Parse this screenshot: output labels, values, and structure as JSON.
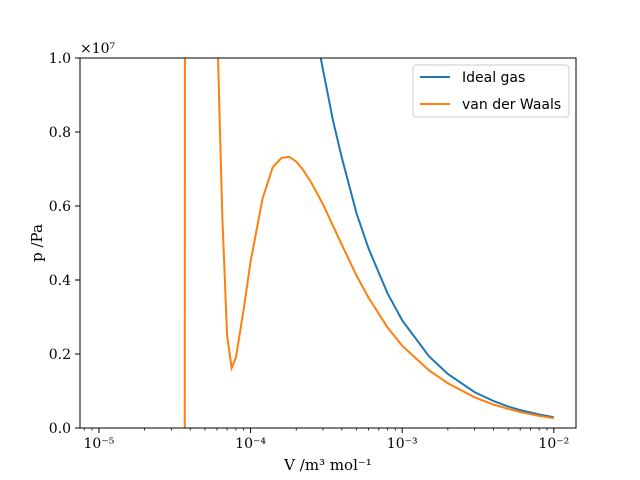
{
  "chart_data": {
    "type": "line",
    "xscale": "log",
    "xlim": [
      7.5e-06,
      0.014
    ],
    "ylim": [
      0,
      1.0
    ],
    "y_multiplier_label": "×10⁷",
    "xlabel": "V /m³ mol⁻¹",
    "ylabel": "p /Pa",
    "grid": false,
    "legend_position": "top-right",
    "x_ticks": [
      {
        "value": 1e-05,
        "label": "10⁻⁵"
      },
      {
        "value": 0.0001,
        "label": "10⁻⁴"
      },
      {
        "value": 0.001,
        "label": "10⁻³"
      },
      {
        "value": 0.01,
        "label": "10⁻²"
      }
    ],
    "y_ticks": [
      {
        "value": 0.0,
        "label": "0.0"
      },
      {
        "value": 0.2,
        "label": "0.2"
      },
      {
        "value": 0.4,
        "label": "0.4"
      },
      {
        "value": 0.6,
        "label": "0.6"
      },
      {
        "value": 0.8,
        "label": "0.8"
      },
      {
        "value": 1.0,
        "label": "1.0"
      }
    ],
    "series": [
      {
        "name": "Ideal gas",
        "color": "#1f77b4",
        "x": [
          0.00029,
          0.00035,
          0.0004,
          0.0005,
          0.0006,
          0.0008,
          0.001,
          0.0015,
          0.002,
          0.003,
          0.004,
          0.005,
          0.006,
          0.008,
          0.01
        ],
        "y": [
          1.0,
          0.83,
          0.73,
          0.58,
          0.485,
          0.364,
          0.291,
          0.194,
          0.146,
          0.097,
          0.073,
          0.058,
          0.0485,
          0.0364,
          0.0291
        ]
      },
      {
        "name": "van der Waals",
        "color": "#ff7f0e",
        "x": [
          3.68e-05,
          3.69e-05
        ],
        "y": [
          0.0,
          1.0
        ],
        "x2": [
          6.1e-05,
          6.5e-05,
          7e-05,
          7.5e-05,
          8e-05,
          9e-05,
          0.0001,
          0.00012,
          0.00014,
          0.00016,
          0.00018,
          0.0002,
          0.00022,
          0.00025,
          0.0003,
          0.0004,
          0.0005,
          0.0006,
          0.0008,
          0.001,
          0.0015,
          0.002,
          0.003,
          0.004,
          0.005,
          0.006,
          0.008,
          0.01
        ],
        "y2": [
          1.0,
          0.58,
          0.25,
          0.162,
          0.19,
          0.32,
          0.45,
          0.62,
          0.705,
          0.73,
          0.733,
          0.72,
          0.7,
          0.665,
          0.605,
          0.495,
          0.412,
          0.352,
          0.272,
          0.222,
          0.156,
          0.121,
          0.083,
          0.0635,
          0.0515,
          0.0432,
          0.0328,
          0.0265
        ]
      }
    ]
  }
}
